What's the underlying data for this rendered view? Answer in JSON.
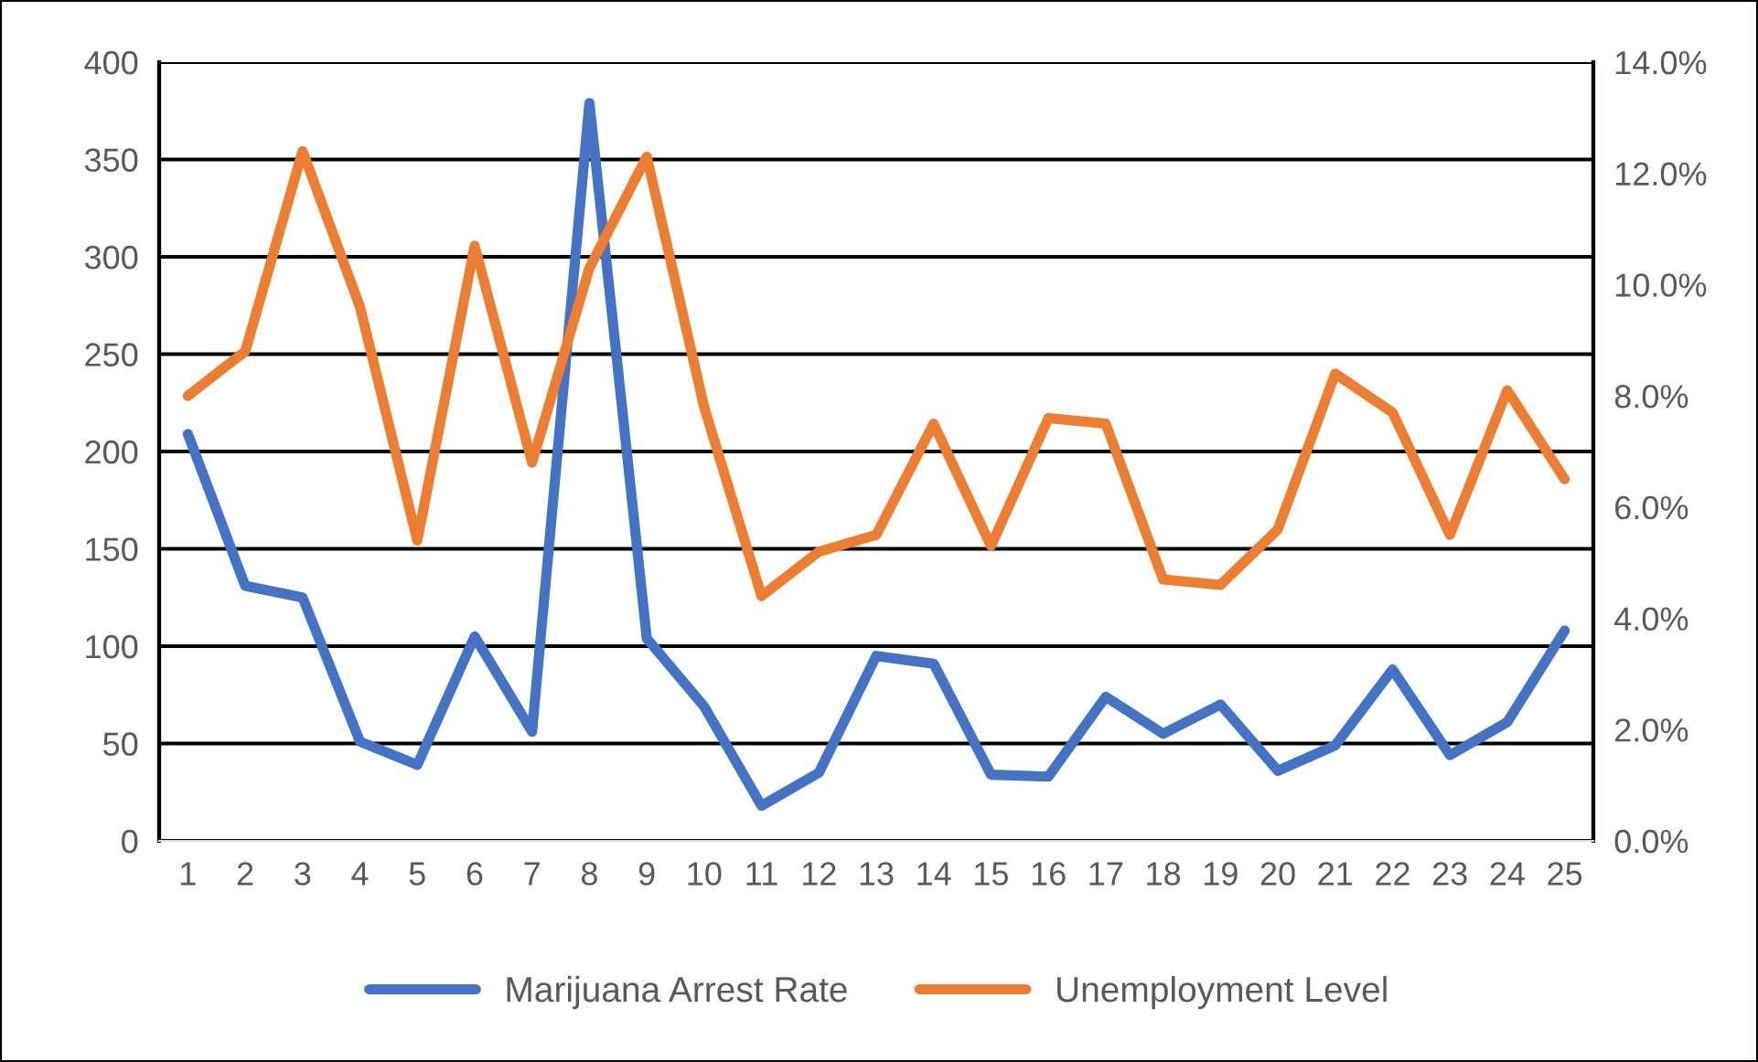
{
  "chart_data": {
    "type": "line",
    "categories": [
      "1",
      "2",
      "3",
      "4",
      "5",
      "6",
      "7",
      "8",
      "9",
      "10",
      "11",
      "12",
      "13",
      "14",
      "15",
      "16",
      "17",
      "18",
      "19",
      "20",
      "21",
      "22",
      "23",
      "24",
      "25"
    ],
    "series": [
      {
        "name": "Marijuana Arrest Rate",
        "color": "#4472c4",
        "values": [
          209,
          131,
          125,
          51,
          39,
          105,
          56,
          379,
          104,
          69,
          18,
          35,
          95,
          91,
          34,
          33,
          74,
          55,
          70,
          36,
          49,
          88,
          44,
          61,
          108
        ]
      },
      {
        "name": "Unemployment Level",
        "color": "#ed7d31",
        "axis": "y2",
        "values": [
          8.0,
          8.8,
          12.4,
          9.6,
          5.4,
          10.7,
          6.8,
          10.3,
          12.3,
          7.8,
          4.4,
          5.2,
          5.5,
          7.5,
          5.3,
          7.6,
          7.5,
          4.7,
          4.6,
          5.6,
          8.4,
          7.7,
          5.5,
          8.1,
          6.5
        ]
      }
    ],
    "ylim": [
      0,
      400
    ],
    "yticks": [
      0,
      50,
      100,
      150,
      200,
      250,
      300,
      350,
      400
    ],
    "y2lim": [
      0,
      14
    ],
    "y2ticks": [
      {
        "value": 0,
        "label": "0.0%"
      },
      {
        "value": 2,
        "label": "2.0%"
      },
      {
        "value": 4,
        "label": "4.0%"
      },
      {
        "value": 6,
        "label": "6.0%"
      },
      {
        "value": 8,
        "label": "8.0%"
      },
      {
        "value": 10,
        "label": "10.0%"
      },
      {
        "value": 12,
        "label": "12.0%"
      },
      {
        "value": 14,
        "label": "14.0%"
      }
    ],
    "grid": "y",
    "legend": "bottom",
    "marker": "none",
    "line_style": "solid"
  }
}
